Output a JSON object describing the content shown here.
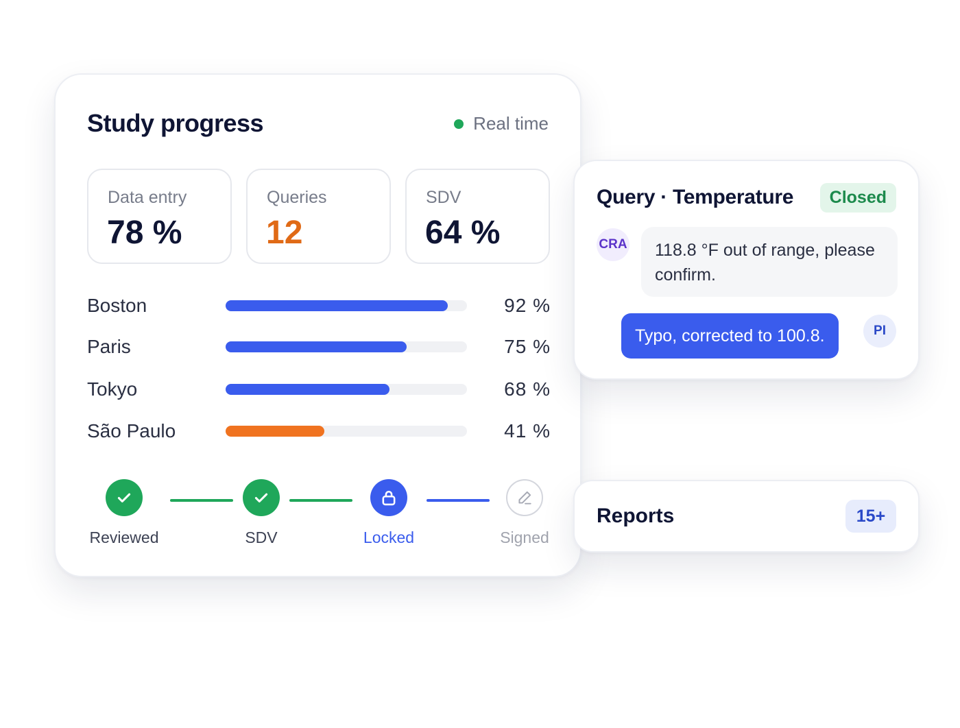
{
  "progress": {
    "title": "Study progress",
    "live_label": "Real time",
    "live_color": "#1fa75a",
    "stats": [
      {
        "label": "Data entry",
        "value": "78 %",
        "color": "#0f1534"
      },
      {
        "label": "Queries",
        "value": "12",
        "color": "#e06a16"
      },
      {
        "label": "SDV",
        "value": "64 %",
        "color": "#0f1534"
      }
    ],
    "sites": [
      {
        "name": "Boston",
        "pct_label": "92 %",
        "fill_fraction": 0.92,
        "color": "#3a5ced"
      },
      {
        "name": "Paris",
        "pct_label": "75 %",
        "fill_fraction": 0.75,
        "color": "#3a5ced"
      },
      {
        "name": "Tokyo",
        "pct_label": "68 %",
        "fill_fraction": 0.68,
        "color": "#3a5ced"
      },
      {
        "name": "São Paulo",
        "pct_label": "41 %",
        "fill_fraction": 0.41,
        "color": "#f07320"
      }
    ],
    "steps": [
      {
        "label": "Reviewed",
        "state": "done",
        "icon": "check-icon"
      },
      {
        "label": "SDV",
        "state": "done",
        "icon": "check-icon"
      },
      {
        "label": "Locked",
        "state": "active",
        "icon": "lock-icon"
      },
      {
        "label": "Signed",
        "state": "pending",
        "icon": "pen-icon"
      }
    ],
    "step_colors": {
      "done": "#1fa75a",
      "active": "#3a5ced",
      "pending": "#d4d6dd"
    }
  },
  "query": {
    "title": "Query · Temperature",
    "status": "Closed",
    "messages": [
      {
        "author": "CRA",
        "text": "118.8 °F out of range, please confirm."
      },
      {
        "author": "PI",
        "text": "Typo, corrected to 100.8."
      }
    ]
  },
  "reports": {
    "title": "Reports",
    "badge": "15+"
  }
}
